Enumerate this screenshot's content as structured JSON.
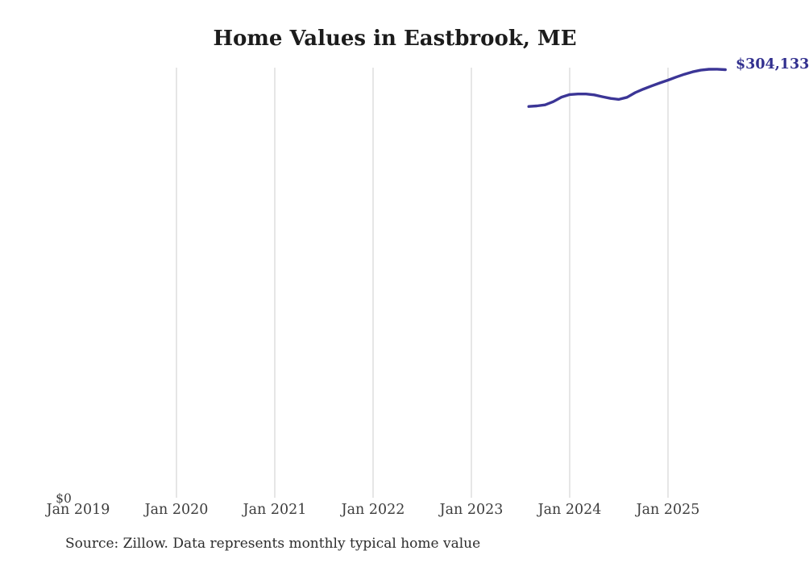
{
  "title": "Home Values in Eastbrook, ME",
  "end_label": "$304,133",
  "source_note": "Source: Zillow. Data represents monthly typical home value",
  "y_axis": {
    "zero_label": "$0"
  },
  "x_axis": {
    "ticks": [
      "Jan 2019",
      "Jan 2020",
      "Jan 2021",
      "Jan 2022",
      "Jan 2023",
      "Jan 2024",
      "Jan 2025"
    ]
  },
  "colors": {
    "background": "#ffffff",
    "line": "#3b3596",
    "end_label": "#32308f",
    "grid": "#cccccc",
    "title_text": "#1c1c1c",
    "axis_text": "#3d3d3d",
    "source_text": "#2d2d2d"
  },
  "chart_data": {
    "type": "line",
    "title": "Home Values in Eastbrook, ME",
    "series_name": "Monthly typical home value",
    "xlabel": "",
    "ylabel": "",
    "ylim": [
      0,
      310000
    ],
    "grid": "vertical-only",
    "legend": "none",
    "x_ticks_shown": [
      "Jan 2019",
      "Jan 2020",
      "Jan 2021",
      "Jan 2022",
      "Jan 2023",
      "Jan 2024",
      "Jan 2025"
    ],
    "end_annotation": "$304,133",
    "x": [
      "Aug 2023",
      "Sep 2023",
      "Oct 2023",
      "Nov 2023",
      "Dec 2023",
      "Jan 2024",
      "Feb 2024",
      "Mar 2024",
      "Apr 2024",
      "May 2024",
      "Jun 2024",
      "Jul 2024",
      "Aug 2024",
      "Sep 2024",
      "Oct 2024",
      "Nov 2024",
      "Dec 2024",
      "Jan 2025",
      "Feb 2025",
      "Mar 2025",
      "Apr 2025",
      "May 2025",
      "Jun 2025",
      "Jul 2025",
      "Aug 2025"
    ],
    "values": [
      278100,
      278500,
      279200,
      281500,
      284700,
      286500,
      286900,
      286900,
      286300,
      285000,
      283800,
      283100,
      284600,
      287900,
      290400,
      292600,
      294700,
      296700,
      298900,
      300900,
      302600,
      303800,
      304400,
      304500,
      304133
    ]
  }
}
